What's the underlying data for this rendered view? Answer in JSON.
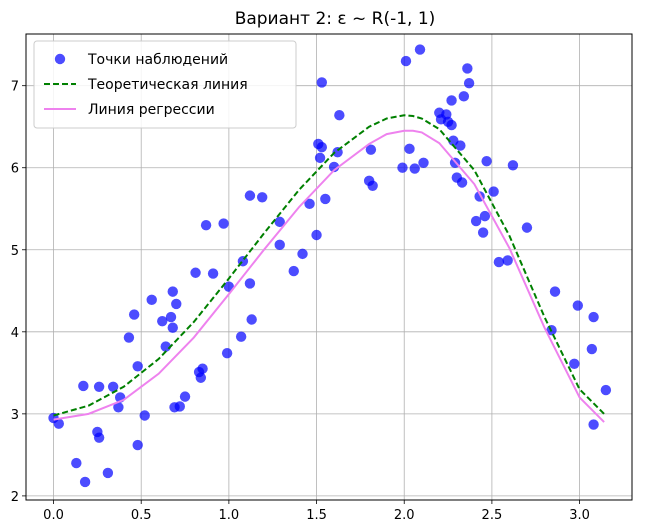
{
  "chart_data": {
    "type": "scatter",
    "title": "Вариант 2: ε ~ R(-1, 1)",
    "xlabel": "",
    "ylabel": "",
    "xlim": [
      -0.157,
      3.299
    ],
    "ylim": [
      1.95,
      7.63
    ],
    "xticks": [
      0.0,
      0.5,
      1.0,
      1.5,
      2.0,
      2.5,
      3.0
    ],
    "xtick_labels": [
      "0.0",
      "0.5",
      "1.0",
      "1.5",
      "2.0",
      "2.5",
      "3.0"
    ],
    "yticks": [
      2,
      3,
      4,
      5,
      6,
      7
    ],
    "ytick_labels": [
      "2",
      "3",
      "4",
      "5",
      "6",
      "7"
    ],
    "grid": true,
    "legend_position": "upper-left",
    "series": [
      {
        "name": "Точки наблюдений",
        "kind": "scatter",
        "color": "#0000ff",
        "alpha": 0.7,
        "points": [
          [
            0.0,
            2.95
          ],
          [
            0.03,
            2.88
          ],
          [
            0.13,
            2.4
          ],
          [
            0.18,
            2.17
          ],
          [
            0.17,
            3.34
          ],
          [
            0.25,
            2.78
          ],
          [
            0.26,
            2.71
          ],
          [
            0.26,
            3.33
          ],
          [
            0.31,
            2.28
          ],
          [
            0.34,
            3.33
          ],
          [
            0.37,
            3.08
          ],
          [
            0.38,
            3.2
          ],
          [
            0.43,
            3.93
          ],
          [
            0.46,
            4.21
          ],
          [
            0.48,
            2.62
          ],
          [
            0.48,
            3.58
          ],
          [
            0.52,
            2.98
          ],
          [
            0.56,
            4.39
          ],
          [
            0.62,
            4.13
          ],
          [
            0.64,
            3.82
          ],
          [
            0.67,
            4.18
          ],
          [
            0.68,
            4.49
          ],
          [
            0.68,
            4.05
          ],
          [
            0.69,
            3.08
          ],
          [
            0.7,
            4.34
          ],
          [
            0.72,
            3.09
          ],
          [
            0.75,
            3.21
          ],
          [
            0.81,
            4.72
          ],
          [
            0.83,
            3.51
          ],
          [
            0.84,
            3.44
          ],
          [
            0.85,
            3.55
          ],
          [
            0.87,
            5.3
          ],
          [
            0.91,
            4.71
          ],
          [
            0.97,
            5.32
          ],
          [
            0.99,
            3.74
          ],
          [
            1.0,
            4.55
          ],
          [
            1.07,
            3.94
          ],
          [
            1.08,
            4.86
          ],
          [
            1.12,
            5.66
          ],
          [
            1.13,
            4.15
          ],
          [
            1.12,
            4.59
          ],
          [
            1.19,
            5.64
          ],
          [
            1.29,
            5.06
          ],
          [
            1.29,
            5.34
          ],
          [
            1.37,
            4.74
          ],
          [
            1.42,
            4.95
          ],
          [
            1.46,
            5.56
          ],
          [
            1.5,
            5.18
          ],
          [
            1.51,
            6.29
          ],
          [
            1.52,
            6.12
          ],
          [
            1.53,
            6.25
          ],
          [
            1.53,
            7.04
          ],
          [
            1.55,
            5.62
          ],
          [
            1.6,
            6.01
          ],
          [
            1.62,
            6.19
          ],
          [
            1.63,
            6.64
          ],
          [
            1.8,
            5.84
          ],
          [
            1.81,
            6.22
          ],
          [
            1.82,
            5.78
          ],
          [
            1.99,
            6.0
          ],
          [
            2.01,
            7.3
          ],
          [
            2.03,
            6.23
          ],
          [
            2.06,
            5.99
          ],
          [
            2.09,
            7.44
          ],
          [
            2.11,
            6.06
          ],
          [
            2.2,
            6.67
          ],
          [
            2.21,
            6.59
          ],
          [
            2.24,
            6.65
          ],
          [
            2.25,
            6.56
          ],
          [
            2.27,
            6.82
          ],
          [
            2.27,
            6.52
          ],
          [
            2.28,
            6.33
          ],
          [
            2.29,
            6.06
          ],
          [
            2.3,
            5.88
          ],
          [
            2.32,
            6.27
          ],
          [
            2.33,
            5.82
          ],
          [
            2.34,
            6.87
          ],
          [
            2.36,
            7.21
          ],
          [
            2.37,
            7.03
          ],
          [
            2.41,
            5.35
          ],
          [
            2.43,
            5.65
          ],
          [
            2.45,
            5.21
          ],
          [
            2.46,
            5.41
          ],
          [
            2.47,
            6.08
          ],
          [
            2.51,
            5.71
          ],
          [
            2.54,
            4.85
          ],
          [
            2.59,
            4.87
          ],
          [
            2.62,
            6.03
          ],
          [
            2.7,
            5.27
          ],
          [
            2.84,
            4.02
          ],
          [
            2.86,
            4.49
          ],
          [
            2.97,
            3.61
          ],
          [
            2.99,
            4.32
          ],
          [
            3.07,
            3.79
          ],
          [
            3.08,
            4.18
          ],
          [
            3.08,
            2.87
          ],
          [
            3.15,
            3.29
          ]
        ]
      },
      {
        "name": "Теоретическая линия",
        "kind": "line",
        "style": "dashed",
        "color": "#008000",
        "x": [
          0.0,
          0.2,
          0.4,
          0.6,
          0.8,
          1.0,
          1.2,
          1.4,
          1.6,
          1.8,
          1.9,
          2.0,
          2.05,
          2.1,
          2.2,
          2.4,
          2.6,
          2.8,
          3.0,
          3.14
        ],
        "y": [
          2.98,
          3.1,
          3.33,
          3.67,
          4.12,
          4.65,
          5.2,
          5.73,
          6.18,
          6.5,
          6.6,
          6.64,
          6.63,
          6.6,
          6.47,
          5.97,
          5.17,
          4.18,
          3.3,
          3.0
        ]
      },
      {
        "name": "Линия регрессии",
        "kind": "line",
        "style": "solid",
        "color": "#ee82ee",
        "x": [
          0.0,
          0.2,
          0.4,
          0.6,
          0.8,
          1.0,
          1.2,
          1.4,
          1.6,
          1.8,
          1.9,
          2.0,
          2.05,
          2.1,
          2.2,
          2.4,
          2.6,
          2.8,
          3.0,
          3.14
        ],
        "y": [
          2.93,
          3.0,
          3.17,
          3.49,
          3.93,
          4.46,
          5.0,
          5.52,
          5.97,
          6.29,
          6.41,
          6.45,
          6.45,
          6.43,
          6.3,
          5.8,
          5.02,
          4.05,
          3.2,
          2.9
        ]
      }
    ]
  }
}
